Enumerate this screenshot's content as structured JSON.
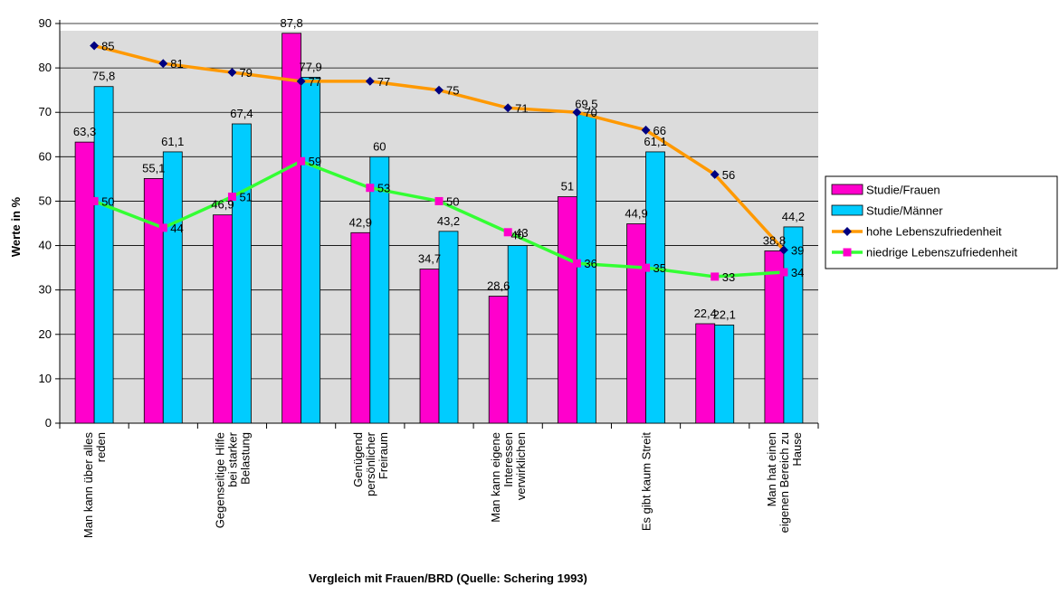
{
  "chart_data": {
    "type": "bar",
    "xlabel": "Vergleich mit Frauen/BRD (Quelle: Schering 1993)",
    "ylabel": "Werte in %",
    "ylim": [
      0,
      90
    ],
    "yticks": [
      "0",
      "10",
      "20",
      "30",
      "40",
      "50",
      "60",
      "70",
      "80",
      "90"
    ],
    "grid": true,
    "legend_position": "right",
    "categories": [
      "Man kann über alles reden",
      "",
      "Gegenseitige Hilfe bei starker Belastung",
      "",
      "Genügend persönlicher Freiraum",
      "",
      "Man kann eigene Interessen verwirklichen",
      "",
      "Es gibt kaum Streit",
      "",
      "Man hat einen eigenen Bereich zu Hause"
    ],
    "category_lines": [
      [
        "Man kann über alles",
        "reden"
      ],
      [],
      [
        "Gegenseitige Hilfe",
        "bei starker",
        "Belastung"
      ],
      [],
      [
        "Genügend",
        "persönlicher",
        "Freiraum"
      ],
      [],
      [
        "Man kann eigene",
        "Interessen",
        "verwirklichen"
      ],
      [],
      [
        "Es gibt kaum Streit"
      ],
      [],
      [
        "Man hat einen",
        "eigenen Bereich zu",
        "Hause"
      ]
    ],
    "series": [
      {
        "name": "Studie/Frauen",
        "kind": "bar",
        "color": "#ff00cc",
        "values": [
          63.3,
          55.1,
          46.9,
          87.8,
          42.9,
          34.7,
          28.6,
          51,
          44.9,
          22.4,
          38.8
        ],
        "labels": [
          "63,3",
          "55,1",
          "46,9",
          "87,8",
          "42,9",
          "34,7",
          "28,6",
          "51",
          "44,9",
          "22,4",
          "38,8"
        ]
      },
      {
        "name": "Studie/Männer",
        "kind": "bar",
        "color": "#00ccff",
        "values": [
          75.8,
          61.1,
          67.4,
          77.9,
          60,
          43.2,
          40,
          69.5,
          61.1,
          22.1,
          44.2
        ],
        "labels": [
          "75,8",
          "61,1",
          "67,4",
          "77,9",
          "60",
          "43,2",
          "40",
          "69,5",
          "61,1",
          "22,1",
          "44,2"
        ]
      },
      {
        "name": "hohe Lebenszufriedenheit",
        "kind": "line",
        "color": "#ff9900",
        "marker_color": "#000080",
        "values": [
          85,
          81,
          79,
          77,
          77,
          75,
          71,
          70,
          66,
          56,
          39
        ],
        "labels": [
          "85",
          "81",
          "79",
          "77",
          "77",
          "75",
          "71",
          "70",
          "66",
          "56",
          "39"
        ]
      },
      {
        "name": "niedrige Lebenszufriedenheit",
        "kind": "line",
        "color": "#33ff33",
        "marker_color": "#ff00cc",
        "values": [
          50,
          44,
          51,
          59,
          53,
          50,
          43,
          36,
          35,
          33,
          34
        ],
        "labels": [
          "50",
          "44",
          "51",
          "59",
          "53",
          "50",
          "43",
          "36",
          "35",
          "33",
          "34"
        ]
      }
    ]
  }
}
